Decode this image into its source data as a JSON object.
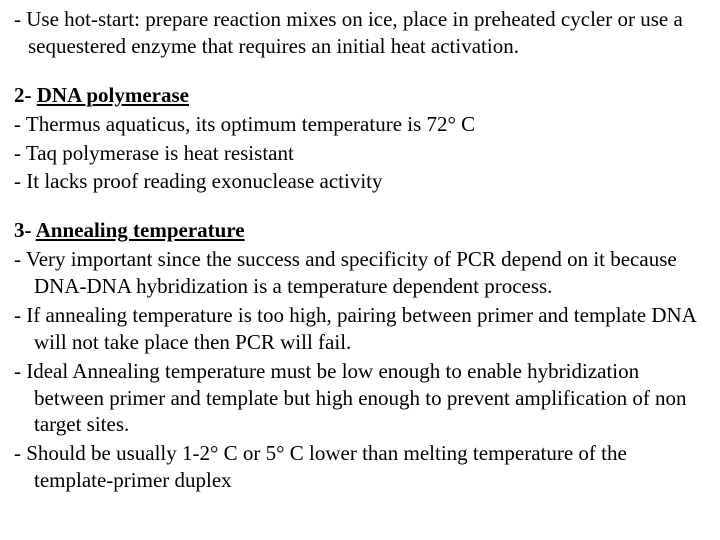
{
  "font": {
    "family": "Times New Roman",
    "size_pt": 21,
    "color": "#000000"
  },
  "background_color": "#ffffff",
  "sections": {
    "hotstart": {
      "line": "- Use hot-start: prepare reaction mixes on ice, place in preheated cycler or use a sequestered enzyme that requires an initial heat activation."
    },
    "dna_polymerase": {
      "heading_prefix": "2- ",
      "heading_title": "DNA polymerase",
      "bullets": [
        "- Thermus aquaticus, its optimum temperature is 72° C",
        "- Taq polymerase is heat resistant",
        "- It lacks proof reading exonuclease activity"
      ]
    },
    "annealing": {
      "heading_prefix": "3- ",
      "heading_title": "Annealing temperature",
      "bullets": [
        "- Very important since the success and specificity of PCR depend on it because DNA-DNA hybridization is a temperature dependent process.",
        "- If annealing temperature is too high, pairing between primer and template DNA will not take place then PCR will fail.",
        "- Ideal Annealing temperature must be low enough to enable hybridization between primer and template but high enough to prevent amplification of non target sites.",
        "- Should be usually 1-2° C or 5° C lower than melting temperature of the template-primer duplex"
      ]
    }
  }
}
